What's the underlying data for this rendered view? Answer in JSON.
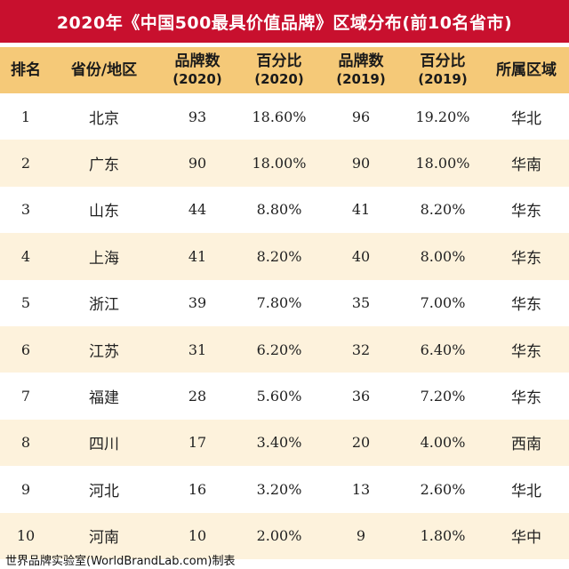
{
  "title": "2020年《中国500最具价值品牌》区域分布(前10名省市)",
  "headers": {
    "rank": "排名",
    "province": "省份/地区",
    "count2020": "品牌数",
    "count2020_sub": "(2020)",
    "pct2020": "百分比",
    "pct2020_sub": "(2020)",
    "count2019": "品牌数",
    "count2019_sub": "(2019)",
    "pct2019": "百分比",
    "pct2019_sub": "(2019)",
    "region": "所属区域"
  },
  "rows": [
    {
      "rank": "1",
      "province": "北京",
      "count2020": "93",
      "pct2020": "18.60%",
      "count2019": "96",
      "pct2019": "19.20%",
      "region": "华北"
    },
    {
      "rank": "2",
      "province": "广东",
      "count2020": "90",
      "pct2020": "18.00%",
      "count2019": "90",
      "pct2019": "18.00%",
      "region": "华南"
    },
    {
      "rank": "3",
      "province": "山东",
      "count2020": "44",
      "pct2020": "8.80%",
      "count2019": "41",
      "pct2019": "8.20%",
      "region": "华东"
    },
    {
      "rank": "4",
      "province": "上海",
      "count2020": "41",
      "pct2020": "8.20%",
      "count2019": "40",
      "pct2019": "8.00%",
      "region": "华东"
    },
    {
      "rank": "5",
      "province": "浙江",
      "count2020": "39",
      "pct2020": "7.80%",
      "count2019": "35",
      "pct2019": "7.00%",
      "region": "华东"
    },
    {
      "rank": "6",
      "province": "江苏",
      "count2020": "31",
      "pct2020": "6.20%",
      "count2019": "32",
      "pct2019": "6.40%",
      "region": "华东"
    },
    {
      "rank": "7",
      "province": "福建",
      "count2020": "28",
      "pct2020": "5.60%",
      "count2019": "36",
      "pct2019": "7.20%",
      "region": "华东"
    },
    {
      "rank": "8",
      "province": "四川",
      "count2020": "17",
      "pct2020": "3.40%",
      "count2019": "20",
      "pct2019": "4.00%",
      "region": "西南"
    },
    {
      "rank": "9",
      "province": "河北",
      "count2020": "16",
      "pct2020": "3.20%",
      "count2019": "13",
      "pct2019": "2.60%",
      "region": "华北"
    },
    {
      "rank": "10",
      "province": "河南",
      "count2020": "10",
      "pct2020": "2.00%",
      "count2019": "9",
      "pct2019": "1.80%",
      "region": "华中"
    }
  ],
  "footer": "世界品牌实验室(WorldBrandLab.com)制表",
  "colors": {
    "title_bg": "#c8102e",
    "header_bg": "#f5c978",
    "stripe_bg": "#fdf2dc"
  }
}
